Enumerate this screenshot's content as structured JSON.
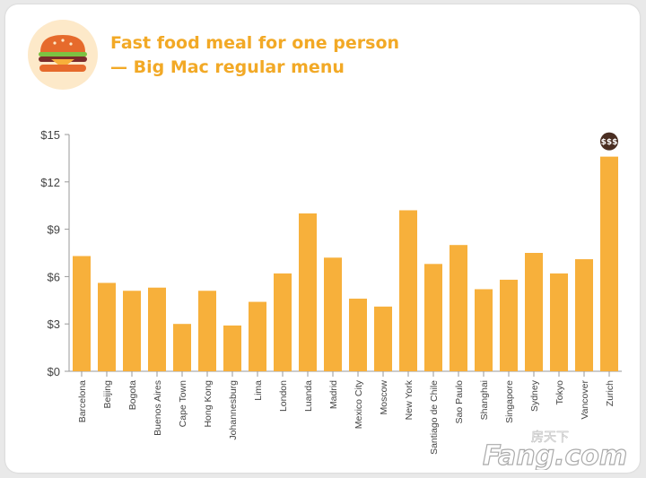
{
  "header": {
    "title_line1": "Fast food meal for one person",
    "title_line2": "— Big Mac regular menu"
  },
  "icons": {
    "logo": "burger-icon",
    "badge": "money-badge-icon"
  },
  "badge_text": "$$$",
  "watermark": {
    "text": "Fang.com",
    "cn_text": "房天下"
  },
  "colors": {
    "bar": "#f7b03b",
    "title": "#f2a926",
    "axis": "#9a9a9a",
    "text": "#444444",
    "badge": "#4a2e22"
  },
  "chart_data": {
    "type": "bar",
    "title": "Fast food meal for one person — Big Mac regular menu",
    "xlabel": "",
    "ylabel": "",
    "ylim": [
      0,
      15
    ],
    "yticks": [
      0,
      3,
      6,
      9,
      12,
      15
    ],
    "ytick_labels": [
      "$0",
      "$3",
      "$6",
      "$9",
      "$12",
      "$15"
    ],
    "grid": false,
    "categories": [
      "Barcelona",
      "Beijing",
      "Bogota",
      "Buenos Aires",
      "Cape Town",
      "Hong Kong",
      "Johannesburg",
      "Lima",
      "London",
      "Luanda",
      "Madrid",
      "Mexico City",
      "Moscow",
      "New York",
      "Santiago de Chile",
      "Sao Paulo",
      "Shanghai",
      "Singapore",
      "Sydney",
      "Tokyo",
      "Vancover",
      "Zurich"
    ],
    "values": [
      7.3,
      5.6,
      5.1,
      5.3,
      3.0,
      5.1,
      2.9,
      4.4,
      6.2,
      10.0,
      7.2,
      4.6,
      4.1,
      10.2,
      6.8,
      8.0,
      5.2,
      5.8,
      7.5,
      6.2,
      7.1,
      13.6
    ],
    "annotations": [
      {
        "category": "Zurich",
        "text": "$$$"
      }
    ]
  }
}
